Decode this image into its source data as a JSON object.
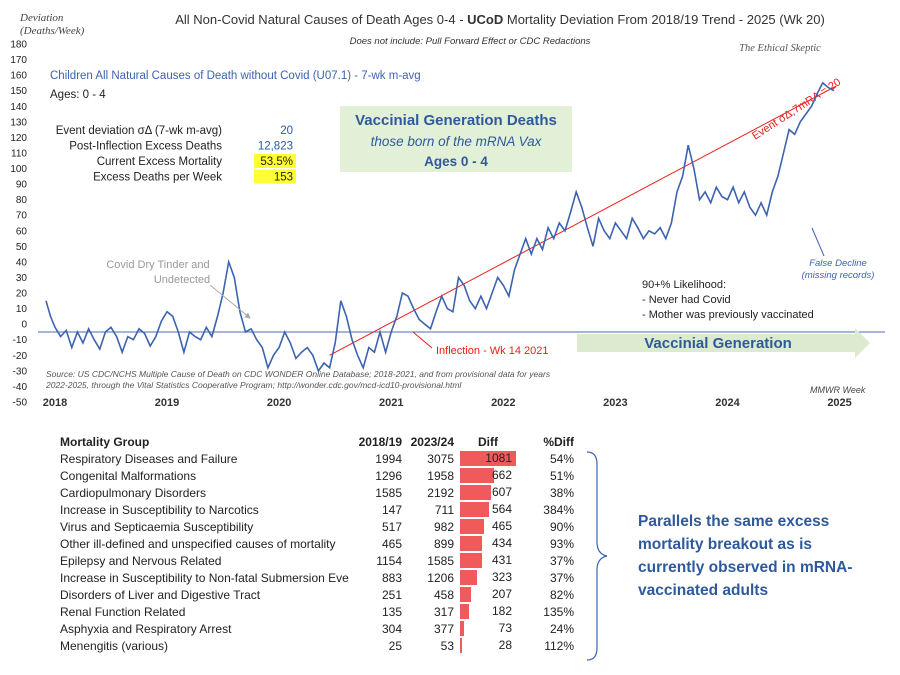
{
  "header": {
    "y_unit_label": [
      "Deviation",
      "(Deaths/Week)"
    ],
    "title_prefix": "All Non-Covid Natural Causes of Death Ages 0-4 - ",
    "title_bold": "UCoD",
    "title_suffix": " Mortality Deviation From 2018/19 Trend - 2025 (Wk 20)",
    "subtitle": "Does not include: Pull Forward Effect or CDC Redactions",
    "brand": "The Ethical Skeptic"
  },
  "legend": {
    "series_label": "Children All Natural Causes of Death without Covid (U07.1) - 7-wk m-avg",
    "ages": "Ages: 0 - 4"
  },
  "stats": [
    {
      "label": "Event deviation σΔ (7-wk m-avg)",
      "value": "20",
      "highlight": false
    },
    {
      "label": "Post-Inflection Excess Deaths",
      "value": "12,823",
      "highlight": false
    },
    {
      "label": "Current Excess Mortality",
      "value": "53.5%",
      "highlight": true
    },
    {
      "label": "Excess Deaths per Week",
      "value": "153",
      "highlight": true
    }
  ],
  "vax_box": {
    "title": "Vaccinial Generation Deaths",
    "subtitle": "those born of the mRNA Vax",
    "ages": "Ages 0 - 4"
  },
  "annotations": {
    "dry_tinder": [
      "Covid Dry Tinder and",
      "Undetected"
    ],
    "event_line": "Event σΔ,7mRA =  20",
    "inflection": "Inflection - Wk 14 2021",
    "vaccinial_generation": "Vaccinial Generation",
    "likelihood": [
      "90+% Likelihood:",
      "- Never had Covid",
      "- Mother was previously vaccinated"
    ],
    "false_decline": [
      "False Decline",
      "(missing records)"
    ],
    "source": [
      "Source: US CDC/NCHS Multiple Cause of Death on CDC WONDER Online Database; 2018-2021, and from provisional data for years",
      "2022-2025, through the Vital Statistics Cooperative Program; http://wonder.cdc.gov/mcd-icd10-provisional.html"
    ],
    "mmwr": "MMWR Week"
  },
  "colors": {
    "series": "#3d63b0",
    "trend": "#e8201c",
    "zero_line": "#4a6fb5",
    "highlight": "#ffff33",
    "vax_box_bg": "#e3f0d8",
    "arrow": "#dcebcf",
    "bar": "#f05a5a",
    "text_blue": "#2e5a9c"
  },
  "chart_data": {
    "type": "line",
    "ylim": [
      -50,
      180
    ],
    "yticks": [
      -50,
      -40,
      -30,
      -20,
      -10,
      0,
      10,
      20,
      30,
      40,
      50,
      60,
      70,
      80,
      90,
      100,
      110,
      120,
      130,
      140,
      150,
      160,
      170,
      180
    ],
    "xlim": [
      2017.92,
      2025.45
    ],
    "years": [
      "2018",
      "2019",
      "2020",
      "2021",
      "2022",
      "2023",
      "2024",
      "2025"
    ],
    "grid": false,
    "series": [
      {
        "values": [
          [
            2017.92,
            15
          ],
          [
            2017.96,
            5
          ],
          [
            2018.0,
            -2
          ],
          [
            2018.05,
            -8
          ],
          [
            2018.1,
            -4
          ],
          [
            2018.15,
            -15
          ],
          [
            2018.2,
            -5
          ],
          [
            2018.25,
            -12
          ],
          [
            2018.3,
            -3
          ],
          [
            2018.35,
            -10
          ],
          [
            2018.4,
            -16
          ],
          [
            2018.45,
            -5
          ],
          [
            2018.5,
            -2
          ],
          [
            2018.55,
            -8
          ],
          [
            2018.6,
            -18
          ],
          [
            2018.65,
            -8
          ],
          [
            2018.7,
            -10
          ],
          [
            2018.75,
            -3
          ],
          [
            2018.8,
            -6
          ],
          [
            2018.85,
            -14
          ],
          [
            2018.9,
            -8
          ],
          [
            2018.95,
            2
          ],
          [
            2019.0,
            8
          ],
          [
            2019.05,
            5
          ],
          [
            2019.1,
            -5
          ],
          [
            2019.15,
            -18
          ],
          [
            2019.2,
            -5
          ],
          [
            2019.25,
            -8
          ],
          [
            2019.3,
            -10
          ],
          [
            2019.35,
            -2
          ],
          [
            2019.4,
            -8
          ],
          [
            2019.45,
            5
          ],
          [
            2019.5,
            20
          ],
          [
            2019.55,
            40
          ],
          [
            2019.6,
            30
          ],
          [
            2019.65,
            8
          ],
          [
            2019.7,
            -5
          ],
          [
            2019.75,
            -3
          ],
          [
            2019.8,
            -10
          ],
          [
            2019.85,
            -15
          ],
          [
            2019.9,
            -28
          ],
          [
            2019.95,
            -20
          ],
          [
            2020.0,
            -15
          ],
          [
            2020.05,
            -5
          ],
          [
            2020.1,
            -12
          ],
          [
            2020.15,
            -22
          ],
          [
            2020.2,
            -18
          ],
          [
            2020.25,
            -15
          ],
          [
            2020.3,
            -20
          ],
          [
            2020.35,
            -30
          ],
          [
            2020.4,
            -25
          ],
          [
            2020.45,
            -28
          ],
          [
            2020.5,
            -12
          ],
          [
            2020.55,
            15
          ],
          [
            2020.6,
            5
          ],
          [
            2020.65,
            -10
          ],
          [
            2020.7,
            -20
          ],
          [
            2020.75,
            -28
          ],
          [
            2020.8,
            -15
          ],
          [
            2020.85,
            -18
          ],
          [
            2020.9,
            -5
          ],
          [
            2020.95,
            -18
          ],
          [
            2021.0,
            -5
          ],
          [
            2021.05,
            5
          ],
          [
            2021.1,
            20
          ],
          [
            2021.15,
            18
          ],
          [
            2021.2,
            10
          ],
          [
            2021.25,
            3
          ],
          [
            2021.3,
            0
          ],
          [
            2021.35,
            -3
          ],
          [
            2021.4,
            8
          ],
          [
            2021.45,
            18
          ],
          [
            2021.5,
            10
          ],
          [
            2021.55,
            8
          ],
          [
            2021.6,
            30
          ],
          [
            2021.65,
            25
          ],
          [
            2021.7,
            15
          ],
          [
            2021.75,
            10
          ],
          [
            2021.8,
            18
          ],
          [
            2021.85,
            10
          ],
          [
            2021.9,
            20
          ],
          [
            2021.95,
            30
          ],
          [
            2022.0,
            25
          ],
          [
            2022.05,
            18
          ],
          [
            2022.1,
            35
          ],
          [
            2022.15,
            45
          ],
          [
            2022.2,
            55
          ],
          [
            2022.25,
            45
          ],
          [
            2022.3,
            55
          ],
          [
            2022.35,
            48
          ],
          [
            2022.4,
            62
          ],
          [
            2022.45,
            55
          ],
          [
            2022.5,
            65
          ],
          [
            2022.55,
            60
          ],
          [
            2022.6,
            72
          ],
          [
            2022.65,
            85
          ],
          [
            2022.7,
            75
          ],
          [
            2022.75,
            62
          ],
          [
            2022.8,
            50
          ],
          [
            2022.85,
            68
          ],
          [
            2022.9,
            60
          ],
          [
            2022.95,
            55
          ],
          [
            2023.0,
            65
          ],
          [
            2023.05,
            60
          ],
          [
            2023.1,
            55
          ],
          [
            2023.15,
            68
          ],
          [
            2023.2,
            62
          ],
          [
            2023.25,
            55
          ],
          [
            2023.3,
            60
          ],
          [
            2023.35,
            58
          ],
          [
            2023.4,
            62
          ],
          [
            2023.45,
            55
          ],
          [
            2023.5,
            65
          ],
          [
            2023.55,
            85
          ],
          [
            2023.6,
            95
          ],
          [
            2023.65,
            115
          ],
          [
            2023.7,
            100
          ],
          [
            2023.75,
            80
          ],
          [
            2023.8,
            85
          ],
          [
            2023.85,
            78
          ],
          [
            2023.9,
            88
          ],
          [
            2023.95,
            82
          ],
          [
            2024.0,
            80
          ],
          [
            2024.05,
            88
          ],
          [
            2024.1,
            78
          ],
          [
            2024.15,
            85
          ],
          [
            2024.2,
            75
          ],
          [
            2024.25,
            70
          ],
          [
            2024.3,
            78
          ],
          [
            2024.35,
            70
          ],
          [
            2024.4,
            85
          ],
          [
            2024.45,
            95
          ],
          [
            2024.5,
            110
          ],
          [
            2024.55,
            125
          ],
          [
            2024.6,
            122
          ],
          [
            2024.65,
            130
          ],
          [
            2024.7,
            135
          ],
          [
            2024.75,
            140
          ],
          [
            2024.8,
            148
          ],
          [
            2024.85,
            155
          ],
          [
            2024.9,
            152
          ],
          [
            2024.95,
            150
          ]
        ]
      }
    ],
    "trend_line": {
      "from": [
        2020.45,
        -20
      ],
      "to": [
        2024.97,
        153
      ]
    },
    "baseline": -5,
    "inflection_x": 2020.78
  },
  "table": {
    "columns": [
      "Mortality Group",
      "2018/19",
      "2023/24",
      "Diff",
      "%Diff"
    ],
    "max_diff": 1081,
    "rows": [
      {
        "group": "Respiratory Diseases and Failure",
        "a": "1994",
        "b": "3075",
        "diff": 1081,
        "pct": "54%"
      },
      {
        "group": "Congenital Malformations",
        "a": "1296",
        "b": "1958",
        "diff": 662,
        "pct": "51%"
      },
      {
        "group": "Cardiopulmonary Disorders",
        "a": "1585",
        "b": "2192",
        "diff": 607,
        "pct": "38%"
      },
      {
        "group": "Increase in Susceptibility to Narcotics",
        "a": "147",
        "b": "711",
        "diff": 564,
        "pct": "384%"
      },
      {
        "group": "Virus and Septicaemia Susceptibility",
        "a": "517",
        "b": "982",
        "diff": 465,
        "pct": "90%"
      },
      {
        "group": "Other ill-defined and unspecified causes of mortality",
        "a": "465",
        "b": "899",
        "diff": 434,
        "pct": "93%"
      },
      {
        "group": "Epilepsy and Nervous Related",
        "a": "1154",
        "b": "1585",
        "diff": 431,
        "pct": "37%"
      },
      {
        "group": "Increase in Susceptibility to Non-fatal Submersion Eve",
        "a": "883",
        "b": "1206",
        "diff": 323,
        "pct": "37%"
      },
      {
        "group": "Disorders of Liver and Digestive Tract",
        "a": "251",
        "b": "458",
        "diff": 207,
        "pct": "82%"
      },
      {
        "group": "Renal Function Related",
        "a": "135",
        "b": "317",
        "diff": 182,
        "pct": "135%"
      },
      {
        "group": "Asphyxia and Respiratory Arrest",
        "a": "304",
        "b": "377",
        "diff": 73,
        "pct": "24%"
      },
      {
        "group": "Menengitis (various)",
        "a": "25",
        "b": "53",
        "diff": 28,
        "pct": "112%"
      }
    ]
  },
  "side_note": "Parallels the same excess mortality breakout as is currently observed in mRNA-vaccinated adults"
}
